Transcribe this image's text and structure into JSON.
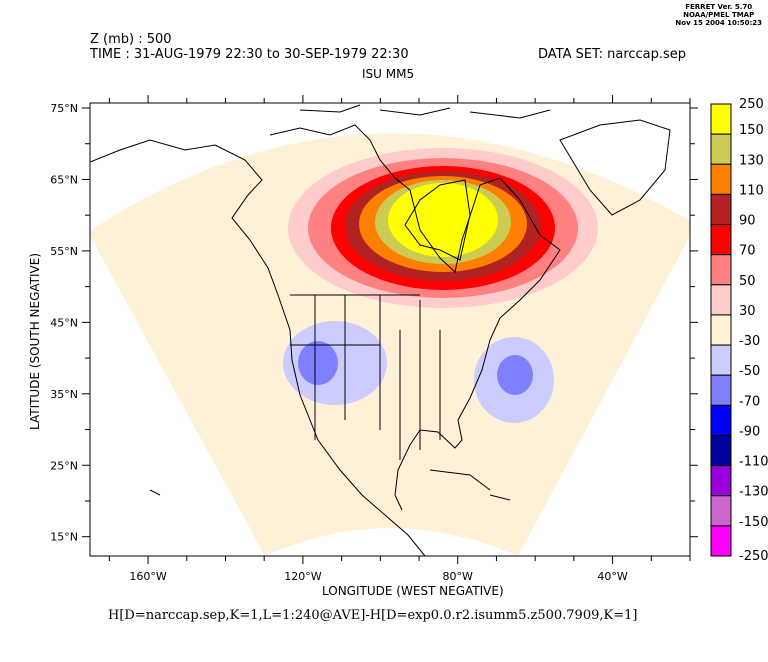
{
  "header": {
    "ferret_version": "FERRET Ver. 5.70",
    "org": "NOAA/PMEL TMAP",
    "date": "Nov 15 2004 10:50:23"
  },
  "title": {
    "variable": "Z (mb) : 500",
    "time": "TIME : 31-AUG-1979 22:30 to 30-SEP-1979 22:30",
    "dataset": "DATA SET: narccap.sep",
    "subtitle": "ISU MM5"
  },
  "footer": "H[D=narccap.sep,K=1,L=1:240@AVE]-H[D=exp0.0.r2.isumm5.z500.7909,K=1]",
  "chart_data": {
    "type": "heatmap",
    "xlabel": "LONGITUDE (WEST NEGATIVE)",
    "ylabel": "LATITUDE (SOUTH NEGATIVE)",
    "xlim": [
      -175,
      -20
    ],
    "ylim": [
      12.3,
      75.7
    ],
    "xticks": [
      {
        "v": -160,
        "label": "160°W"
      },
      {
        "v": -120,
        "label": "120°W"
      },
      {
        "v": -80,
        "label": "80°W"
      },
      {
        "v": -40,
        "label": "40°W"
      }
    ],
    "yticks": [
      {
        "v": 75,
        "label": "75°N"
      },
      {
        "v": 65,
        "label": "65°N"
      },
      {
        "v": 55,
        "label": "55°N"
      },
      {
        "v": 45,
        "label": "45°N"
      },
      {
        "v": 35,
        "label": "35°N"
      },
      {
        "v": 25,
        "label": "25°N"
      },
      {
        "v": 15,
        "label": "15°N"
      }
    ],
    "colorbar": {
      "levels": [
        "250",
        "150",
        "130",
        "110",
        "90",
        "70",
        "50",
        "30",
        "-30",
        "-50",
        "-70",
        "-90",
        "-110",
        "-130",
        "-150",
        "-250"
      ],
      "colors": [
        "#ffff00",
        "#cccc55",
        "#ff8000",
        "#b22222",
        "#ff0000",
        "#ff8080",
        "#ffcccc",
        "#fff0d8",
        "#ccccff",
        "#8080ff",
        "#0000ff",
        "#00009a",
        "#9900dd",
        "#cc66cc",
        "#ff00ff"
      ]
    },
    "features": [
      {
        "name": "positive anomaly",
        "center_lon": -84,
        "center_lat": 59,
        "max_level": "150-250"
      },
      {
        "name": "negative anomaly west",
        "center_lon": -116,
        "center_lat": 37,
        "min_level": "-70 to -50"
      },
      {
        "name": "negative anomaly atlantic",
        "center_lon": -66,
        "center_lat": 36,
        "min_level": "-70 to -50"
      }
    ]
  }
}
